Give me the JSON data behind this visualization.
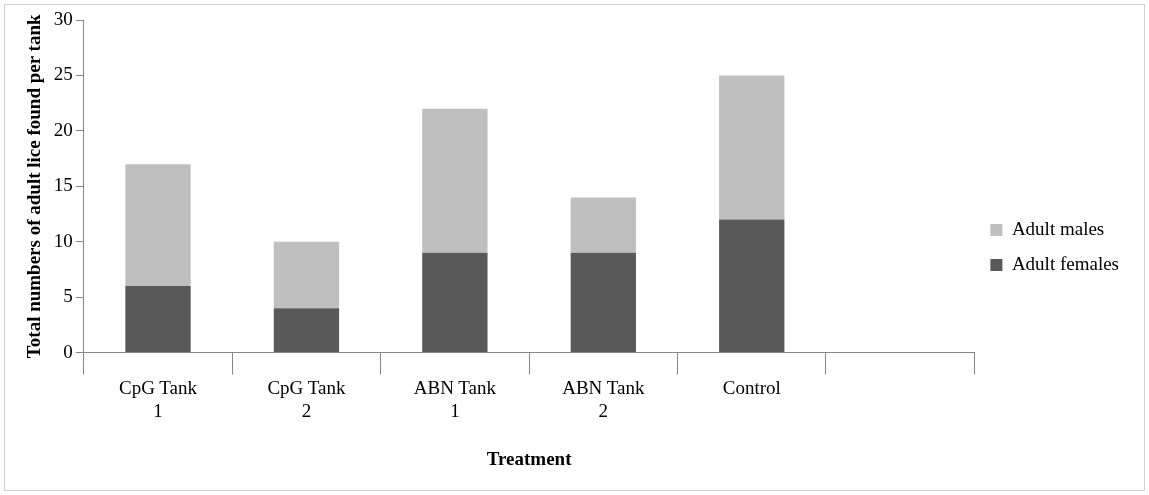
{
  "chart_data": {
    "type": "bar",
    "stacked": true,
    "xlabel": "Treatment",
    "ylabel": "Total numbers of adult lice found per tank",
    "categories": [
      "CpG Tank 1",
      "CpG Tank 2",
      "ABN Tank 1",
      "ABN Tank 2",
      "Control",
      null
    ],
    "series": [
      {
        "name": "Adult females",
        "color": "#595959",
        "values": [
          6,
          4,
          9,
          9,
          12,
          null
        ]
      },
      {
        "name": "Adult males",
        "color": "#bfbfbf",
        "values": [
          11,
          6,
          13,
          5,
          13,
          null
        ]
      }
    ],
    "ylim": [
      0,
      30
    ],
    "yticks": [
      0,
      5,
      10,
      15,
      20,
      25,
      30
    ],
    "legend": "right"
  }
}
